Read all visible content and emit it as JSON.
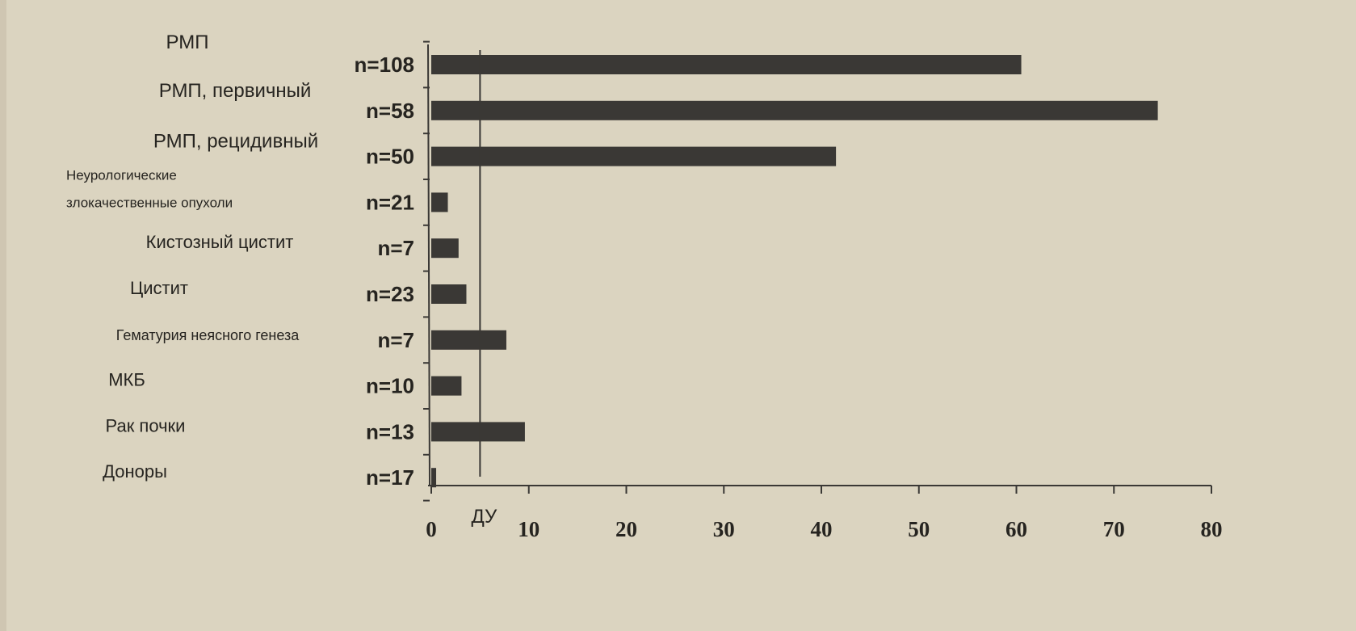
{
  "chart_data": {
    "type": "bar",
    "orientation": "horizontal",
    "categories": [
      "РМП",
      "РМП, первичный",
      "РМП, рецидивный",
      "Неурологические злокачественные опухоли",
      "Кистозный цистит",
      "Цистит",
      "Гематурия неясного генеза",
      "МКБ",
      "Рак почки",
      "Доноры"
    ],
    "category_lines": [
      [
        "РМП"
      ],
      [
        "РМП, первичный"
      ],
      [
        "РМП, рецидивный"
      ],
      [
        "Неурологические",
        "злокачественные опухоли"
      ],
      [
        "Кистозный цистит"
      ],
      [
        "Цистит"
      ],
      [
        "Гематурия неясного генеза"
      ],
      [
        "МКБ"
      ],
      [
        "Рак почки"
      ],
      [
        "Доноры"
      ]
    ],
    "n_labels": [
      "n=108",
      "n=58",
      "n=50",
      "n=21",
      "n=7",
      "n=23",
      "n=7",
      "n=10",
      "n=13",
      "n=17"
    ],
    "values": [
      60.5,
      74.5,
      41.5,
      1.7,
      2.8,
      3.6,
      7.7,
      3.1,
      9.6,
      0.5
    ],
    "xlim": [
      0,
      80
    ],
    "xticks": [
      "0",
      "10",
      "20",
      "30",
      "40",
      "50",
      "60",
      "70",
      "80"
    ],
    "reference_line": {
      "value": 5,
      "label": "ДУ"
    },
    "title": "",
    "xlabel": "",
    "ylabel": "",
    "grid": false,
    "legend": "none",
    "bar_color": "#3a3835",
    "axis_color": "#3a3835",
    "text_color": "#262420",
    "background_color": "#dbd4c0"
  }
}
